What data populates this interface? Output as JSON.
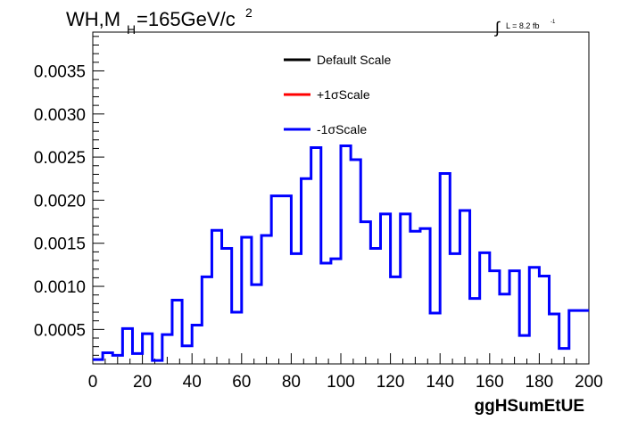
{
  "chart_data": {
    "type": "line",
    "title_main": "WH,M",
    "title_sub": "H",
    "title_tail": "=165GeV/c",
    "title_sup": "2",
    "lumi_label": "L = 8.2 fb",
    "lumi_sup": "-1",
    "xlabel": "ggHSumEtUE",
    "xlim": [
      0,
      200
    ],
    "ylim": [
      0.0001,
      0.00395
    ],
    "x_ticks": [
      "0",
      "20",
      "40",
      "60",
      "80",
      "100",
      "120",
      "140",
      "160",
      "180",
      "200"
    ],
    "y_ticks": [
      "0.0005",
      "0.0010",
      "0.0015",
      "0.0020",
      "0.0025",
      "0.0030",
      "0.0035"
    ],
    "bin_width": 4,
    "legend": [
      {
        "label": "Default Scale",
        "color": "#000000"
      },
      {
        "label": "+1σScale",
        "color": "#ff0000"
      },
      {
        "label": "-1σScale",
        "color": "#0000ff"
      }
    ],
    "series": [
      {
        "name": "-1σScale",
        "color": "#0000ff",
        "values": [
          0.00015,
          0.00023,
          0.0002,
          0.00051,
          0.00022,
          0.00045,
          0.00014,
          0.00044,
          0.00084,
          0.00031,
          0.00055,
          0.00111,
          0.00165,
          0.00144,
          0.0007,
          0.00157,
          0.00102,
          0.00159,
          0.00205,
          0.00205,
          0.00138,
          0.00225,
          0.00261,
          0.00127,
          0.00132,
          0.00263,
          0.00247,
          0.00175,
          0.00144,
          0.00184,
          0.00111,
          0.00184,
          0.00164,
          0.00167,
          0.00069,
          0.00231,
          0.00138,
          0.00188,
          0.00086,
          0.00139,
          0.00118,
          0.00091,
          0.00118,
          0.00043,
          0.00122,
          0.00112,
          0.00068,
          0.00028,
          0.00072,
          0.00072
        ]
      }
    ]
  }
}
